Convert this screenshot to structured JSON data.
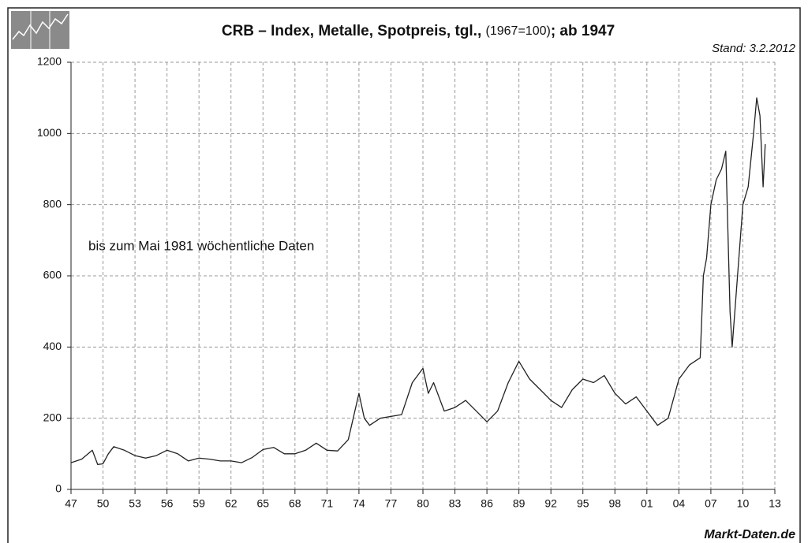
{
  "chart_data": {
    "type": "line",
    "title": {
      "main": "CRB – Index, Metalle, Spotpreis, tgl.,",
      "base": "(1967=100)",
      "tail": "; ab 1947"
    },
    "date_note": "Stand: 3.2.2012",
    "annotation": "bis zum Mai 1981 wöchentliche Daten",
    "source": "Markt-Daten.de",
    "xlim": [
      1947,
      2013
    ],
    "xticks": [
      {
        "value": 1947,
        "label": "47"
      },
      {
        "value": 1950,
        "label": "50"
      },
      {
        "value": 1953,
        "label": "53"
      },
      {
        "value": 1956,
        "label": "56"
      },
      {
        "value": 1959,
        "label": "59"
      },
      {
        "value": 1962,
        "label": "62"
      },
      {
        "value": 1965,
        "label": "65"
      },
      {
        "value": 1968,
        "label": "68"
      },
      {
        "value": 1971,
        "label": "71"
      },
      {
        "value": 1974,
        "label": "74"
      },
      {
        "value": 1977,
        "label": "77"
      },
      {
        "value": 1980,
        "label": "80"
      },
      {
        "value": 1983,
        "label": "83"
      },
      {
        "value": 1986,
        "label": "86"
      },
      {
        "value": 1989,
        "label": "89"
      },
      {
        "value": 1992,
        "label": "92"
      },
      {
        "value": 1995,
        "label": "95"
      },
      {
        "value": 1998,
        "label": "98"
      },
      {
        "value": 2001,
        "label": "01"
      },
      {
        "value": 2004,
        "label": "04"
      },
      {
        "value": 2007,
        "label": "07"
      },
      {
        "value": 2010,
        "label": "10"
      },
      {
        "value": 2013,
        "label": "13"
      }
    ],
    "ylim": [
      0,
      1200
    ],
    "yticks": [
      0,
      200,
      400,
      600,
      800,
      1000,
      1200
    ],
    "grid": true,
    "color": "#222222",
    "x": [
      1947,
      1948,
      1949,
      1949.5,
      1950,
      1950.5,
      1951,
      1952,
      1953,
      1954,
      1955,
      1956,
      1957,
      1958,
      1959,
      1960,
      1961,
      1962,
      1963,
      1964,
      1965,
      1966,
      1967,
      1968,
      1969,
      1970,
      1971,
      1972,
      1973,
      1974,
      1974.5,
      1975,
      1976,
      1977,
      1978,
      1979,
      1980,
      1980.5,
      1981,
      1982,
      1983,
      1984,
      1985,
      1986,
      1987,
      1988,
      1989,
      1990,
      1991,
      1992,
      1993,
      1994,
      1995,
      1996,
      1997,
      1998,
      1999,
      2000,
      2001,
      2002,
      2003,
      2004,
      2005,
      2006,
      2006.3,
      2006.6,
      2007,
      2007.5,
      2008,
      2008.4,
      2008.8,
      2009,
      2009.5,
      2010,
      2010.5,
      2011,
      2011.3,
      2011.6,
      2011.9,
      2012.1
    ],
    "values": [
      75,
      85,
      110,
      70,
      72,
      100,
      120,
      110,
      95,
      88,
      95,
      110,
      100,
      80,
      88,
      85,
      80,
      80,
      75,
      90,
      112,
      118,
      100,
      100,
      110,
      130,
      110,
      108,
      140,
      270,
      200,
      180,
      200,
      205,
      210,
      300,
      340,
      270,
      300,
      220,
      230,
      250,
      220,
      190,
      220,
      300,
      360,
      310,
      280,
      250,
      230,
      280,
      310,
      300,
      320,
      270,
      240,
      260,
      220,
      180,
      200,
      310,
      350,
      370,
      600,
      650,
      800,
      870,
      900,
      950,
      500,
      400,
      600,
      800,
      850,
      1000,
      1100,
      1050,
      850,
      970
    ]
  }
}
